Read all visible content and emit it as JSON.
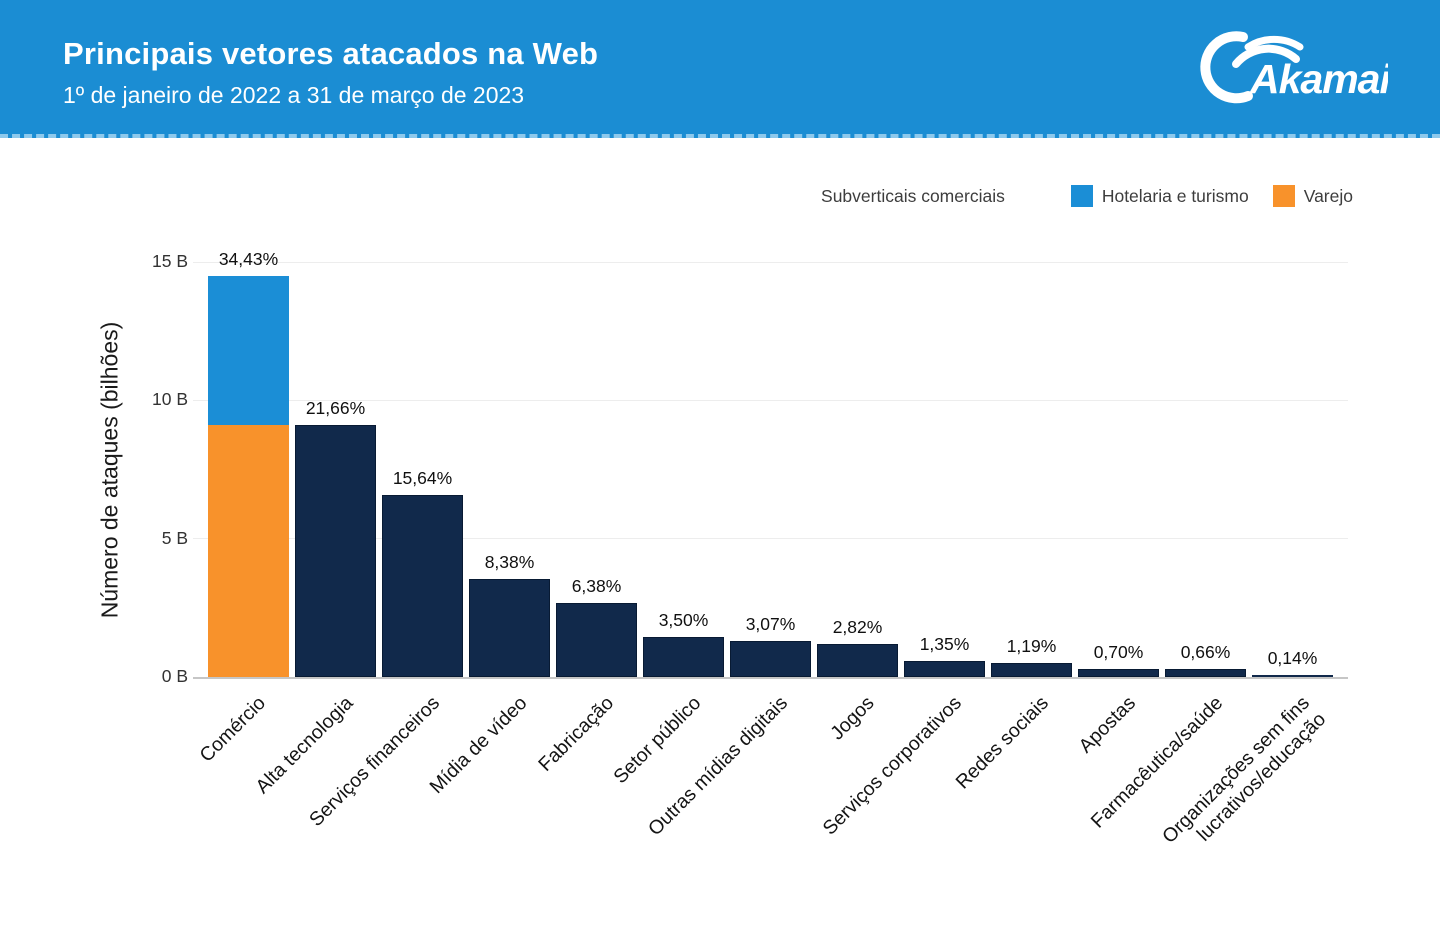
{
  "header": {
    "title": "Principais vetores atacados na Web",
    "subtitle": "1º de janeiro de 2022 a 31 de março de 2023",
    "logo_text": "Akamai"
  },
  "legend": {
    "title": "Subverticais comerciais",
    "items": [
      {
        "label": "Hotelaria e turismo",
        "color": "#1b8ed6"
      },
      {
        "label": "Varejo",
        "color": "#f8922b"
      }
    ]
  },
  "colors": {
    "header_background": "#1b8dd3",
    "bar_navy": "#11294b",
    "bar_blue": "#1b8ed6",
    "bar_orange": "#f8922b"
  },
  "chart_data": {
    "type": "bar",
    "title": "Principais vetores atacados na Web",
    "subtitle": "1º de janeiro de 2022 a 31 de março de 2023",
    "ylabel": "Número de ataques (bilhões)",
    "ylim": [
      0,
      15
    ],
    "ytick_values": [
      0,
      5,
      10,
      15
    ],
    "ytick_labels": [
      "0 B",
      "5 B",
      "10 B",
      "15 B"
    ],
    "grid": "horizontal",
    "legend_position": "top-right",
    "categories": [
      "Comércio",
      "Alta tecnologia",
      "Serviços financeiros",
      "Mídia de vídeo",
      "Fabricação",
      "Setor público",
      "Outras mídias digitais",
      "Jogos",
      "Serviços corporativos",
      "Redes sociais",
      "Apostas",
      "Farmacêutica/saúde",
      "Organizações sem fins\nlucrativos/educação"
    ],
    "percent_labels": [
      "34,43%",
      "21,66%",
      "15,64%",
      "8,38%",
      "6,38%",
      "3,50%",
      "3,07%",
      "2,82%",
      "1,35%",
      "1,19%",
      "0,70%",
      "0,66%",
      "0,14%"
    ],
    "totals_billions": [
      14.5,
      9.12,
      6.59,
      3.53,
      2.69,
      1.45,
      1.29,
      1.19,
      0.57,
      0.5,
      0.29,
      0.28,
      0.06
    ],
    "comercio_stack": [
      {
        "name": "Varejo",
        "value_billions": 9.1,
        "color": "#f8922b"
      },
      {
        "name": "Hotelaria e turismo",
        "value_billions": 5.4,
        "color": "#1b8ed6"
      }
    ],
    "default_bar_color": "#11294b"
  }
}
